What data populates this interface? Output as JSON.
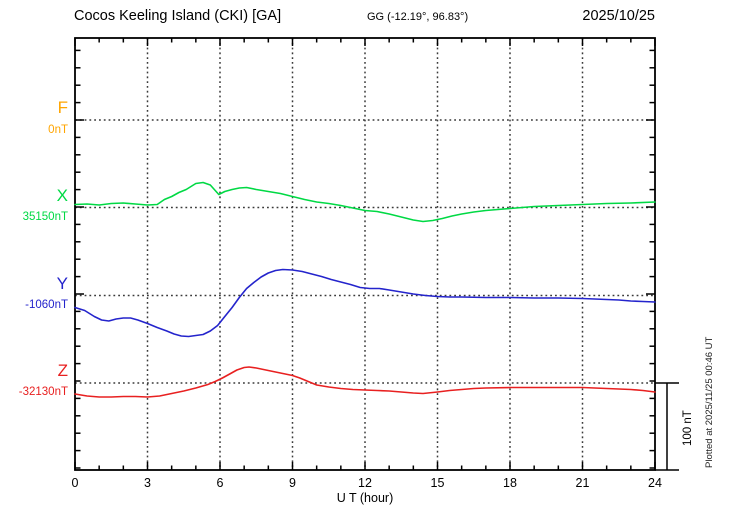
{
  "header": {
    "station_title": "Cocos Keeling Island (CKI)  [GA]",
    "coords": "GG (-12.19°,  96.83°)",
    "date": "2025/10/25"
  },
  "footer": {
    "xlabel": "U T (hour)"
  },
  "side": {
    "scale_label": "100 nT",
    "plotted_at": "Plotted at 2025/11/25 00:46 UT"
  },
  "chart_data": {
    "type": "line",
    "title": "Cocos Keeling Island (CKI) [GA] magnetogram 2025/10/25",
    "xlabel": "U T (hour)",
    "xlim": [
      0,
      24
    ],
    "x_ticks": [
      0,
      3,
      6,
      9,
      12,
      15,
      18,
      21,
      24
    ],
    "x_minor_step": 1,
    "grid": "dotted, vertical every 3 h, horizontal at each channel baseline",
    "scale_bar": {
      "label": "100 nT",
      "nT": 100
    },
    "y_minor_tick_nT": 20,
    "series": [
      {
        "name": "F",
        "baseline_value": 0,
        "base_label": "0nT",
        "color": "#ffa500",
        "points": []
      },
      {
        "name": "X",
        "baseline_value": 35150,
        "base_label": "35150nT",
        "color": "#00d944",
        "points": [
          [
            0,
            3.4
          ],
          [
            0.5,
            4
          ],
          [
            1,
            2.9
          ],
          [
            1.5,
            4.6
          ],
          [
            2,
            5.2
          ],
          [
            2.5,
            4
          ],
          [
            3,
            2.9
          ],
          [
            3.4,
            3.4
          ],
          [
            3.7,
            9.2
          ],
          [
            4,
            12.6
          ],
          [
            4.3,
            17.2
          ],
          [
            4.6,
            20.7
          ],
          [
            5,
            27.6
          ],
          [
            5.3,
            28.7
          ],
          [
            5.6,
            25.9
          ],
          [
            5.95,
            14.9
          ],
          [
            6.2,
            18.4
          ],
          [
            6.5,
            20.7
          ],
          [
            6.8,
            22.4
          ],
          [
            7.1,
            23
          ],
          [
            7.5,
            20.7
          ],
          [
            8,
            18.4
          ],
          [
            8.5,
            16.1
          ],
          [
            9,
            12.6
          ],
          [
            9.5,
            9.2
          ],
          [
            10,
            6.3
          ],
          [
            10.5,
            4.6
          ],
          [
            11,
            2.3
          ],
          [
            11.5,
            -0.6
          ],
          [
            12,
            -3.4
          ],
          [
            12.5,
            -4.6
          ],
          [
            13,
            -7.5
          ],
          [
            13.5,
            -10.9
          ],
          [
            14,
            -14.4
          ],
          [
            14.4,
            -16.1
          ],
          [
            14.8,
            -14.9
          ],
          [
            15.2,
            -12.6
          ],
          [
            15.6,
            -9.8
          ],
          [
            16,
            -7.5
          ],
          [
            16.5,
            -5.2
          ],
          [
            17,
            -3.4
          ],
          [
            17.5,
            -2.3
          ],
          [
            18,
            -1.1
          ],
          [
            18.5,
            0
          ],
          [
            19,
            1.1
          ],
          [
            19.5,
            1.7
          ],
          [
            20,
            2.3
          ],
          [
            21,
            3.4
          ],
          [
            22,
            4.6
          ],
          [
            23,
            5.2
          ],
          [
            24,
            6.3
          ]
        ]
      },
      {
        "name": "Y",
        "baseline_value": -1060,
        "base_label": "-1060nT",
        "color": "#2424cc",
        "points": [
          [
            0,
            -13.8
          ],
          [
            0.4,
            -17.2
          ],
          [
            0.8,
            -24.1
          ],
          [
            1.1,
            -28.2
          ],
          [
            1.4,
            -29.3
          ],
          [
            1.7,
            -27
          ],
          [
            2,
            -25.9
          ],
          [
            2.3,
            -25.9
          ],
          [
            2.6,
            -28.2
          ],
          [
            3,
            -32.2
          ],
          [
            3.4,
            -36.8
          ],
          [
            3.8,
            -40.8
          ],
          [
            4.1,
            -44.3
          ],
          [
            4.4,
            -46.6
          ],
          [
            4.7,
            -47.1
          ],
          [
            5,
            -46
          ],
          [
            5.3,
            -44.8
          ],
          [
            5.6,
            -40.8
          ],
          [
            5.9,
            -34.5
          ],
          [
            6.2,
            -24.1
          ],
          [
            6.5,
            -13.8
          ],
          [
            6.8,
            -2.3
          ],
          [
            7.1,
            8
          ],
          [
            7.4,
            14.9
          ],
          [
            7.7,
            21.3
          ],
          [
            8,
            25.9
          ],
          [
            8.3,
            28.7
          ],
          [
            8.6,
            29.9
          ],
          [
            9,
            29.3
          ],
          [
            9.4,
            27.6
          ],
          [
            9.8,
            24.7
          ],
          [
            10.2,
            21.8
          ],
          [
            10.6,
            18.4
          ],
          [
            11,
            15.5
          ],
          [
            11.4,
            12.6
          ],
          [
            11.8,
            9.2
          ],
          [
            12.2,
            8
          ],
          [
            12.6,
            8
          ],
          [
            13,
            6.3
          ],
          [
            13.5,
            4
          ],
          [
            14,
            1.7
          ],
          [
            14.5,
            0
          ],
          [
            15,
            -1.1
          ],
          [
            15.5,
            -1.7
          ],
          [
            16,
            -1.7
          ],
          [
            17,
            -2.3
          ],
          [
            18,
            -2.3
          ],
          [
            19,
            -2.9
          ],
          [
            20,
            -2.9
          ],
          [
            21,
            -3.4
          ],
          [
            22,
            -4.6
          ],
          [
            22.5,
            -5.2
          ],
          [
            23,
            -6.3
          ],
          [
            23.5,
            -6.9
          ],
          [
            24,
            -7.5
          ]
        ]
      },
      {
        "name": "Z",
        "baseline_value": -32130,
        "base_label": "-32130nT",
        "color": "#e82020",
        "points": [
          [
            0,
            -12.6
          ],
          [
            0.5,
            -14.9
          ],
          [
            1,
            -16.1
          ],
          [
            1.5,
            -16.1
          ],
          [
            2,
            -15.5
          ],
          [
            2.5,
            -15.5
          ],
          [
            3,
            -16.1
          ],
          [
            3.5,
            -14.9
          ],
          [
            4,
            -12.1
          ],
          [
            4.5,
            -9.2
          ],
          [
            5,
            -5.7
          ],
          [
            5.5,
            -1.7
          ],
          [
            5.8,
            1.7
          ],
          [
            6.1,
            5.7
          ],
          [
            6.4,
            10.3
          ],
          [
            6.7,
            14.9
          ],
          [
            7,
            17.8
          ],
          [
            7.2,
            18.4
          ],
          [
            7.5,
            17.2
          ],
          [
            8,
            14.4
          ],
          [
            8.5,
            11.5
          ],
          [
            9,
            8.6
          ],
          [
            9.3,
            5.7
          ],
          [
            9.6,
            2.3
          ],
          [
            10,
            -2.3
          ],
          [
            10.5,
            -4.6
          ],
          [
            11,
            -6.3
          ],
          [
            11.5,
            -7.5
          ],
          [
            12,
            -8
          ],
          [
            12.5,
            -8.6
          ],
          [
            13,
            -9.2
          ],
          [
            13.5,
            -10.3
          ],
          [
            14,
            -11.5
          ],
          [
            14.4,
            -12.1
          ],
          [
            15,
            -10.3
          ],
          [
            15.5,
            -8.6
          ],
          [
            16,
            -7.5
          ],
          [
            16.5,
            -6.3
          ],
          [
            17,
            -5.7
          ],
          [
            18,
            -5.2
          ],
          [
            19,
            -5.2
          ],
          [
            20,
            -5.2
          ],
          [
            21,
            -5.2
          ],
          [
            22,
            -6.3
          ],
          [
            23,
            -7.5
          ],
          [
            23.5,
            -8.6
          ],
          [
            24,
            -10.3
          ]
        ]
      }
    ],
    "note": "points are [hour, deviation in nT from channel baseline]; F trace not plotted (no data)"
  }
}
